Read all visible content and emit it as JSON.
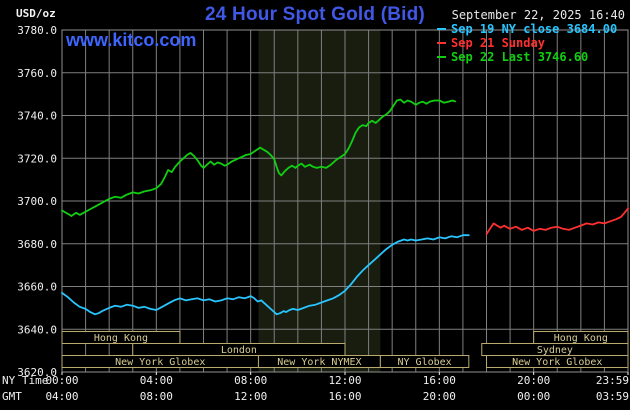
{
  "header": {
    "unit": "USD/oz",
    "title": "24 Hour Spot Gold (Bid)",
    "timestamp": "September 22, 2025 16:40",
    "watermark": "www.kitco.com"
  },
  "legend": {
    "items": [
      {
        "label": "Sep 19 NY close 3684.00",
        "color": "#29c5ff"
      },
      {
        "label": "Sep 21 Sunday",
        "color": "#ff3030"
      },
      {
        "label": "Sep 22 Last 3746.60",
        "color": "#10cf10"
      }
    ]
  },
  "axes": {
    "ny_row_label": "NY Time",
    "gmt_row_label": "GMT",
    "tick_hours": [
      0,
      4,
      8,
      12,
      16,
      20,
      24
    ],
    "ny_tick_labels": [
      "00:00",
      "04:00",
      "08:00",
      "12:00",
      "16:00",
      "20:00",
      "23:59"
    ],
    "gmt_tick_labels": [
      "04:00",
      "08:00",
      "12:00",
      "16:00",
      "20:00",
      "00:00",
      "03:59"
    ],
    "y_tick_labels": [
      "3620.0",
      "3640.0",
      "3660.0",
      "3680.0",
      "3700.0",
      "3720.0",
      "3740.0",
      "3760.0",
      "3780.0"
    ]
  },
  "colors": {
    "background": "#000000",
    "grid": "#7f7f7f",
    "plot_border": "#909090",
    "axis_text": "#f0f0f0",
    "title_blue": "#4157e6",
    "watermark_blue": "#3e66ff",
    "session_border": "#b9aa6d",
    "session_text": "#d8cd92",
    "session_fill": "#000000"
  },
  "chart_data": {
    "type": "line",
    "title": "24 Hour Spot Gold (Bid)",
    "x_unit": "hour of day (NY time)",
    "y_unit": "USD/oz",
    "xlim": [
      0,
      24
    ],
    "ylim": [
      3620,
      3780
    ],
    "y_ticks": [
      3620,
      3640,
      3660,
      3680,
      3700,
      3720,
      3740,
      3760,
      3780
    ],
    "grid": true,
    "legend_position": "top-right",
    "shaded_band": {
      "x0": 8.33,
      "x1": 13.5,
      "color": "#181d10",
      "meaning": "NYMEX floor hours"
    },
    "series": [
      {
        "id": "sep19-ny-close",
        "name": "Sep 19 NY close 3684.00",
        "color": "#29c5ff",
        "points": [
          [
            0,
            3657
          ],
          [
            0.25,
            3655
          ],
          [
            0.5,
            3652.5
          ],
          [
            0.75,
            3650.5
          ],
          [
            1,
            3649.5
          ],
          [
            1.2,
            3648
          ],
          [
            1.4,
            3647
          ],
          [
            1.55,
            3647.5
          ],
          [
            1.7,
            3648.5
          ],
          [
            1.9,
            3649.5
          ],
          [
            2,
            3650
          ],
          [
            2.25,
            3651
          ],
          [
            2.5,
            3650.5
          ],
          [
            2.75,
            3651.5
          ],
          [
            3,
            3651
          ],
          [
            3.25,
            3650
          ],
          [
            3.5,
            3650.5
          ],
          [
            3.75,
            3649.5
          ],
          [
            4,
            3649
          ],
          [
            4.25,
            3650.5
          ],
          [
            4.5,
            3652
          ],
          [
            4.75,
            3653.5
          ],
          [
            5,
            3654.5
          ],
          [
            5.25,
            3653.5
          ],
          [
            5.5,
            3654
          ],
          [
            5.75,
            3654.5
          ],
          [
            6,
            3653.5
          ],
          [
            6.25,
            3654
          ],
          [
            6.5,
            3653
          ],
          [
            6.75,
            3653.5
          ],
          [
            7,
            3654.5
          ],
          [
            7.25,
            3654
          ],
          [
            7.5,
            3655
          ],
          [
            7.75,
            3654.5
          ],
          [
            8,
            3655.5
          ],
          [
            8.15,
            3654.5
          ],
          [
            8.3,
            3653
          ],
          [
            8.45,
            3653.5
          ],
          [
            8.6,
            3652
          ],
          [
            8.75,
            3650.5
          ],
          [
            8.9,
            3649
          ],
          [
            9,
            3648
          ],
          [
            9.1,
            3647
          ],
          [
            9.25,
            3647.5
          ],
          [
            9.4,
            3648.5
          ],
          [
            9.5,
            3648
          ],
          [
            9.65,
            3649
          ],
          [
            9.8,
            3649.5
          ],
          [
            10,
            3649
          ],
          [
            10.25,
            3650
          ],
          [
            10.5,
            3651
          ],
          [
            10.75,
            3651.5
          ],
          [
            11,
            3652.5
          ],
          [
            11.25,
            3653.5
          ],
          [
            11.5,
            3654.5
          ],
          [
            11.75,
            3656
          ],
          [
            12,
            3658
          ],
          [
            12.25,
            3661
          ],
          [
            12.5,
            3664.5
          ],
          [
            12.75,
            3667.5
          ],
          [
            13,
            3670
          ],
          [
            13.25,
            3672.5
          ],
          [
            13.5,
            3675
          ],
          [
            13.75,
            3677.5
          ],
          [
            14,
            3679.5
          ],
          [
            14.25,
            3681
          ],
          [
            14.5,
            3682
          ],
          [
            14.65,
            3681.5
          ],
          [
            14.8,
            3682
          ],
          [
            15,
            3681.5
          ],
          [
            15.25,
            3682
          ],
          [
            15.5,
            3682.5
          ],
          [
            15.75,
            3682
          ],
          [
            16,
            3683
          ],
          [
            16.25,
            3682.5
          ],
          [
            16.5,
            3683.5
          ],
          [
            16.75,
            3683
          ],
          [
            17,
            3684
          ],
          [
            17.25,
            3684
          ]
        ]
      },
      {
        "id": "sep21-sunday",
        "name": "Sep 21 Sunday",
        "color": "#ff3030",
        "points": [
          [
            18,
            3684.5
          ],
          [
            18.15,
            3687
          ],
          [
            18.3,
            3689.5
          ],
          [
            18.45,
            3688.5
          ],
          [
            18.6,
            3687.5
          ],
          [
            18.75,
            3688.5
          ],
          [
            18.9,
            3687.5
          ],
          [
            19,
            3687
          ],
          [
            19.25,
            3688
          ],
          [
            19.5,
            3686.5
          ],
          [
            19.75,
            3687.5
          ],
          [
            20,
            3686
          ],
          [
            20.25,
            3687
          ],
          [
            20.5,
            3686.5
          ],
          [
            20.75,
            3687.5
          ],
          [
            21,
            3688
          ],
          [
            21.25,
            3687
          ],
          [
            21.5,
            3686.5
          ],
          [
            21.75,
            3687.5
          ],
          [
            22,
            3688.5
          ],
          [
            22.25,
            3689.5
          ],
          [
            22.5,
            3689
          ],
          [
            22.75,
            3690
          ],
          [
            23,
            3689.5
          ],
          [
            23.25,
            3690.5
          ],
          [
            23.5,
            3691.5
          ],
          [
            23.7,
            3692.5
          ],
          [
            23.85,
            3694.5
          ],
          [
            24,
            3696.5
          ]
        ]
      },
      {
        "id": "sep22-last",
        "name": "Sep 22 Last 3746.60",
        "color": "#10cf10",
        "points": [
          [
            0,
            3695.5
          ],
          [
            0.25,
            3694
          ],
          [
            0.4,
            3693
          ],
          [
            0.6,
            3694.5
          ],
          [
            0.75,
            3693.5
          ],
          [
            1,
            3695
          ],
          [
            1.25,
            3696.5
          ],
          [
            1.5,
            3698
          ],
          [
            1.75,
            3699.5
          ],
          [
            2,
            3701
          ],
          [
            2.25,
            3702
          ],
          [
            2.5,
            3701.5
          ],
          [
            2.75,
            3703
          ],
          [
            3,
            3704
          ],
          [
            3.25,
            3703.5
          ],
          [
            3.5,
            3704.5
          ],
          [
            3.75,
            3705
          ],
          [
            4,
            3706
          ],
          [
            4.2,
            3708
          ],
          [
            4.35,
            3711
          ],
          [
            4.5,
            3714.5
          ],
          [
            4.65,
            3713.5
          ],
          [
            4.8,
            3716
          ],
          [
            5,
            3718.5
          ],
          [
            5.15,
            3720
          ],
          [
            5.3,
            3721.5
          ],
          [
            5.45,
            3722.5
          ],
          [
            5.6,
            3721
          ],
          [
            5.75,
            3719
          ],
          [
            5.9,
            3716.5
          ],
          [
            6,
            3715.5
          ],
          [
            6.15,
            3717
          ],
          [
            6.3,
            3718.5
          ],
          [
            6.45,
            3717
          ],
          [
            6.6,
            3718
          ],
          [
            6.75,
            3717.5
          ],
          [
            6.9,
            3716.5
          ],
          [
            7,
            3717
          ],
          [
            7.2,
            3718.5
          ],
          [
            7.4,
            3719.5
          ],
          [
            7.6,
            3720.5
          ],
          [
            7.8,
            3721.5
          ],
          [
            8,
            3722
          ],
          [
            8.2,
            3723.5
          ],
          [
            8.4,
            3725
          ],
          [
            8.55,
            3724
          ],
          [
            8.7,
            3723
          ],
          [
            8.85,
            3721.5
          ],
          [
            9,
            3719.5
          ],
          [
            9.1,
            3716
          ],
          [
            9.2,
            3713
          ],
          [
            9.3,
            3712
          ],
          [
            9.45,
            3714
          ],
          [
            9.6,
            3715.5
          ],
          [
            9.75,
            3716.5
          ],
          [
            9.9,
            3715.5
          ],
          [
            10,
            3716.5
          ],
          [
            10.15,
            3717.5
          ],
          [
            10.3,
            3716
          ],
          [
            10.5,
            3717
          ],
          [
            10.65,
            3716
          ],
          [
            10.8,
            3715.5
          ],
          [
            11,
            3716
          ],
          [
            11.2,
            3715.5
          ],
          [
            11.4,
            3717
          ],
          [
            11.6,
            3719
          ],
          [
            11.8,
            3720.5
          ],
          [
            12,
            3722
          ],
          [
            12.15,
            3724.5
          ],
          [
            12.3,
            3728
          ],
          [
            12.45,
            3732
          ],
          [
            12.6,
            3734.5
          ],
          [
            12.75,
            3735.5
          ],
          [
            12.9,
            3735
          ],
          [
            13,
            3736.5
          ],
          [
            13.15,
            3737.5
          ],
          [
            13.3,
            3736.5
          ],
          [
            13.45,
            3738
          ],
          [
            13.6,
            3739.5
          ],
          [
            13.75,
            3740.5
          ],
          [
            13.9,
            3742
          ],
          [
            14.05,
            3744.5
          ],
          [
            14.2,
            3747
          ],
          [
            14.35,
            3747.5
          ],
          [
            14.5,
            3746
          ],
          [
            14.65,
            3747
          ],
          [
            14.8,
            3746.5
          ],
          [
            15,
            3745
          ],
          [
            15.15,
            3746
          ],
          [
            15.3,
            3746.5
          ],
          [
            15.45,
            3745.5
          ],
          [
            15.6,
            3746.5
          ],
          [
            15.8,
            3747
          ],
          [
            16,
            3747
          ],
          [
            16.2,
            3746
          ],
          [
            16.4,
            3746.5
          ],
          [
            16.55,
            3747
          ],
          [
            16.67,
            3746.6
          ]
        ]
      }
    ],
    "sessions": [
      {
        "label": "Hong Kong",
        "row": 0,
        "x0": 0,
        "x1": 5
      },
      {
        "label": "Hong Kong",
        "row": 0,
        "x0": 20,
        "x1": 24
      },
      {
        "label": "London",
        "row": 1,
        "x0": 3,
        "x1": 12
      },
      {
        "label": "Sydney",
        "row": 1,
        "x0": 17.8,
        "x1": 24
      },
      {
        "label": "New York Globex",
        "row": 2,
        "x0": 0,
        "x1": 8.33
      },
      {
        "label": "New York NYMEX",
        "row": 2,
        "x0": 8.33,
        "x1": 13.5
      },
      {
        "label": "NY Globex",
        "row": 2,
        "x0": 13.5,
        "x1": 17.25
      },
      {
        "label": "New York Globex",
        "row": 2,
        "x0": 18,
        "x1": 24
      }
    ]
  }
}
